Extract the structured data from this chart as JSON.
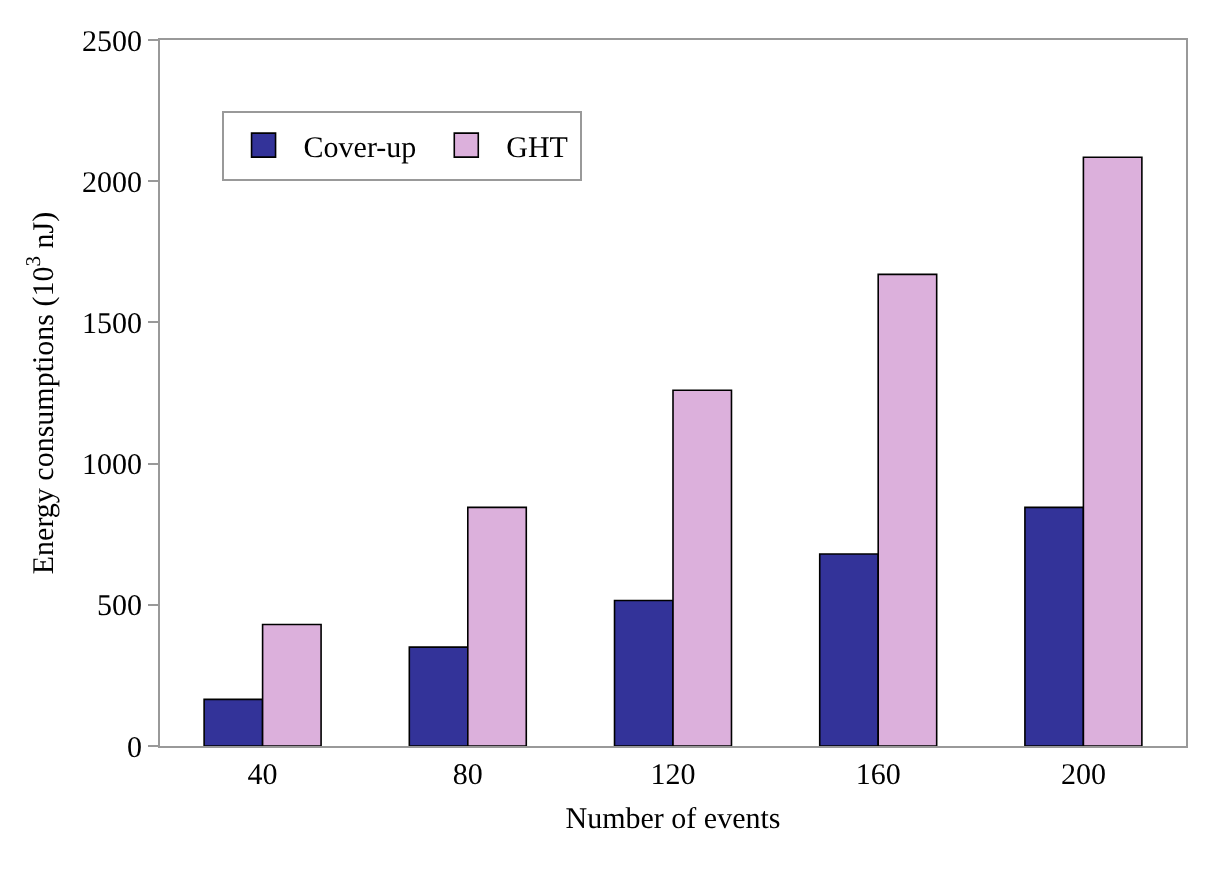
{
  "chart_data": {
    "type": "bar",
    "xlabel": "Number of events",
    "ylabel": "Energy consumptions (10$^{3}$ nJ)",
    "categories": [
      "40",
      "80",
      "120",
      "160",
      "200"
    ],
    "series": [
      {
        "name": "Cover-up",
        "color": "#333399",
        "values": [
          165,
          350,
          515,
          680,
          845
        ]
      },
      {
        "name": "GHT",
        "color": "#dcb0dc",
        "values": [
          430,
          845,
          1260,
          1670,
          2085
        ]
      }
    ],
    "ylim": [
      0,
      2500
    ],
    "yticks": [
      0,
      500,
      1000,
      1500,
      2000,
      2500
    ],
    "grid": false,
    "legend": "top left"
  }
}
